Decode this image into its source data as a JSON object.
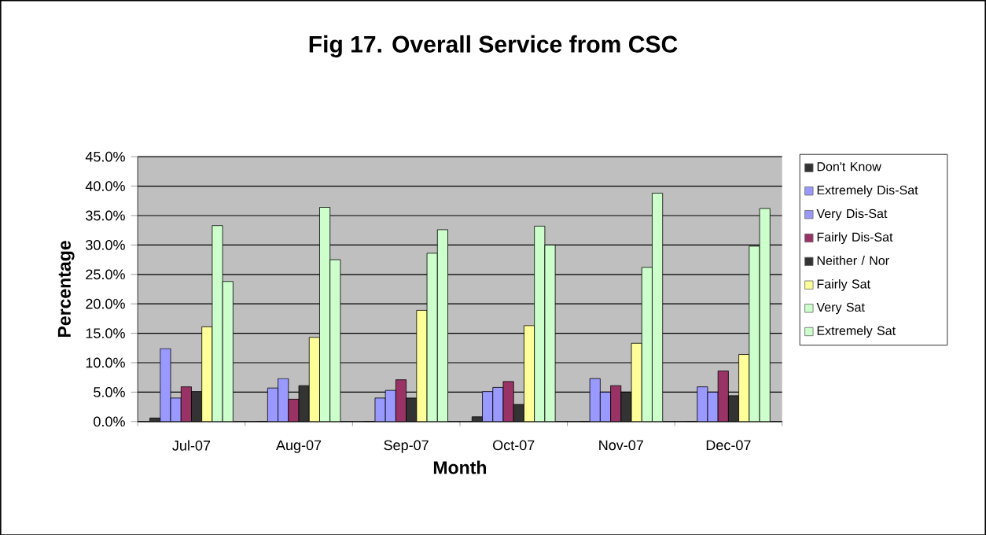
{
  "chart_data": {
    "type": "bar",
    "title": "Fig 17. Overall Service from CSC",
    "xlabel": "Month",
    "ylabel": "Percentage",
    "categories": [
      "Jul-07",
      "Aug-07",
      "Sep-07",
      "Oct-07",
      "Nov-07",
      "Dec-07"
    ],
    "series": [
      {
        "name": "Don't Know",
        "color": "#333333",
        "values": [
          0.6,
          0,
          0,
          0.8,
          0,
          0
        ]
      },
      {
        "name": "Extremely Dis-Sat",
        "color": "#9999ff",
        "values": [
          12.4,
          5.7,
          4.0,
          5.1,
          7.3,
          5.9
        ]
      },
      {
        "name": "Very Dis-Sat",
        "color": "#9999ff",
        "values": [
          4.0,
          7.3,
          5.3,
          5.8,
          5.0,
          5.0
        ]
      },
      {
        "name": "Fairly Dis-Sat",
        "color": "#993366",
        "values": [
          5.9,
          3.8,
          7.1,
          6.8,
          6.1,
          8.6
        ]
      },
      {
        "name": "Neither / Nor",
        "color": "#333333",
        "values": [
          5.1,
          6.1,
          4.0,
          2.9,
          5.0,
          4.4
        ]
      },
      {
        "name": "Fairly Sat",
        "color": "#ffff99",
        "values": [
          16.1,
          14.3,
          18.9,
          16.3,
          13.3,
          11.4
        ]
      },
      {
        "name": "Very Sat",
        "color": "#ccffcc",
        "values": [
          33.3,
          36.4,
          28.6,
          33.2,
          26.2,
          29.8
        ]
      },
      {
        "name": "Extremely Sat",
        "color": "#ccffcc",
        "values": [
          23.8,
          27.5,
          32.6,
          30.0,
          38.8,
          36.2
        ]
      }
    ],
    "ylim": [
      0,
      45
    ],
    "yticks": [
      {
        "value": 0,
        "label": "0.0%"
      },
      {
        "value": 5,
        "label": "5.0%"
      },
      {
        "value": 10,
        "label": "10.0%"
      },
      {
        "value": 15,
        "label": "15.0%"
      },
      {
        "value": 20,
        "label": "20.0%"
      },
      {
        "value": 25,
        "label": "25.0%"
      },
      {
        "value": 30,
        "label": "30.0%"
      },
      {
        "value": 35,
        "label": "35.0%"
      },
      {
        "value": 40,
        "label": "40.0%"
      },
      {
        "value": 45,
        "label": "45.0%"
      }
    ],
    "grid": "y",
    "legend": "right"
  }
}
